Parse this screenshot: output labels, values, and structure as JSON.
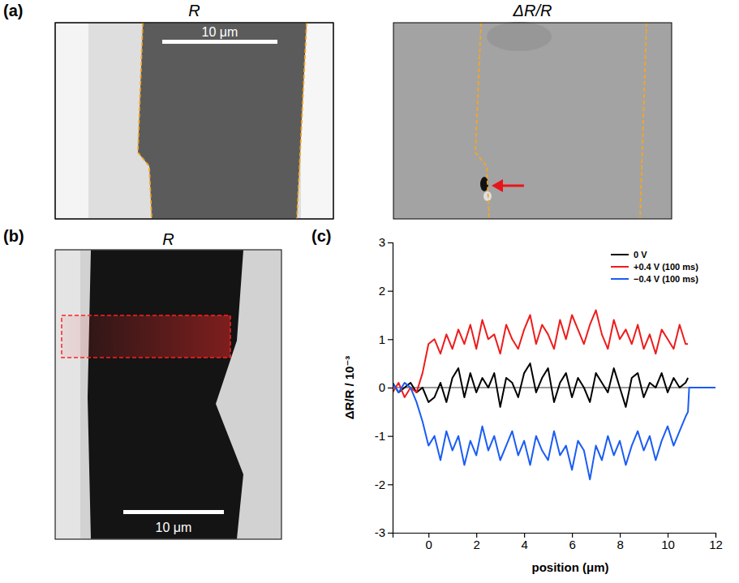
{
  "figure": {
    "panels": [
      {
        "label": "(a)",
        "images": [
          {
            "title": "R",
            "scale_bar": "10 μm"
          },
          {
            "title": "ΔR/R"
          }
        ]
      },
      {
        "label": "(b)",
        "images": [
          {
            "title": "R",
            "scale_bar": "10 μm"
          }
        ]
      },
      {
        "label": "(c)"
      }
    ]
  },
  "chart_data": {
    "type": "line",
    "x_label": "position (μm)",
    "y_label": "ΔR/R / 10⁻³",
    "x": [
      -1.5,
      -1.25,
      -1,
      -0.75,
      -0.5,
      -0.25,
      0,
      0.25,
      0.5,
      0.75,
      1,
      1.25,
      1.5,
      1.75,
      2,
      2.25,
      2.5,
      2.75,
      3,
      3.25,
      3.5,
      3.75,
      4,
      4.25,
      4.5,
      4.75,
      5,
      5.25,
      5.5,
      5.75,
      6,
      6.25,
      6.5,
      6.75,
      7,
      7.25,
      7.5,
      7.75,
      8,
      8.25,
      8.5,
      8.75,
      9,
      9.25,
      9.5,
      9.75,
      10,
      10.25,
      10.5,
      10.75,
      10.85,
      10.9,
      12
    ],
    "series": [
      {
        "name": "0 V",
        "color": "#000000",
        "values": [
          0.1,
          -0.1,
          0.0,
          0.1,
          -0.1,
          0.0,
          -0.3,
          -0.2,
          0.1,
          -0.3,
          0.2,
          0.4,
          -0.2,
          0.3,
          -0.1,
          0.2,
          0.0,
          0.3,
          -0.4,
          0.2,
          0.1,
          -0.2,
          0.3,
          0.5,
          -0.1,
          0.2,
          0.4,
          -0.3,
          0.1,
          0.3,
          -0.2,
          0.2,
          0.0,
          -0.3,
          0.3,
          0.1,
          -0.1,
          0.4,
          0.0,
          -0.4,
          0.2,
          0.3,
          -0.2,
          0.1,
          0.0,
          0.3,
          -0.1,
          0.2,
          0.0,
          0.1,
          0.2,
          null,
          null
        ]
      },
      {
        "name": "+0.4 V (100 ms)",
        "color": "#ee1c1c",
        "values": [
          -0.1,
          0.1,
          -0.2,
          0.0,
          -0.1,
          0.3,
          0.9,
          1.0,
          0.7,
          1.1,
          0.8,
          1.2,
          0.9,
          1.3,
          0.8,
          1.4,
          1.0,
          1.1,
          0.7,
          1.3,
          1.0,
          0.8,
          1.2,
          1.5,
          0.9,
          1.3,
          1.1,
          0.8,
          1.4,
          1.0,
          1.5,
          1.2,
          0.9,
          1.3,
          1.6,
          1.1,
          0.8,
          1.4,
          1.0,
          1.2,
          0.9,
          1.3,
          0.8,
          1.1,
          0.7,
          1.2,
          1.0,
          0.8,
          1.3,
          0.9,
          0.9,
          null,
          null
        ]
      },
      {
        "name": "−0.4 V (100 ms)",
        "color": "#1a5cf5",
        "values": [
          0.1,
          -0.1,
          0.1,
          0.0,
          -0.3,
          -0.7,
          -1.2,
          -1.0,
          -1.5,
          -0.9,
          -1.3,
          -1.0,
          -1.6,
          -1.1,
          -1.4,
          -0.8,
          -1.3,
          -1.0,
          -1.5,
          -1.2,
          -0.9,
          -1.4,
          -1.1,
          -1.6,
          -1.0,
          -1.3,
          -1.5,
          -0.9,
          -1.4,
          -1.2,
          -1.7,
          -1.1,
          -1.3,
          -1.9,
          -1.2,
          -1.5,
          -1.0,
          -1.4,
          -1.1,
          -1.6,
          -1.2,
          -0.9,
          -1.3,
          -1.0,
          -1.5,
          -1.1,
          -0.8,
          -1.2,
          -0.9,
          -0.6,
          -0.5,
          0.0,
          0.0
        ]
      }
    ],
    "xlim": [
      -1.5,
      12
    ],
    "xticks": [
      0,
      2,
      4,
      6,
      8,
      10,
      12
    ],
    "ylim": [
      -3,
      3
    ],
    "yticks": [
      -3,
      -2,
      -1,
      0,
      1,
      2,
      3
    ],
    "grid": false,
    "legend": "upper right"
  }
}
